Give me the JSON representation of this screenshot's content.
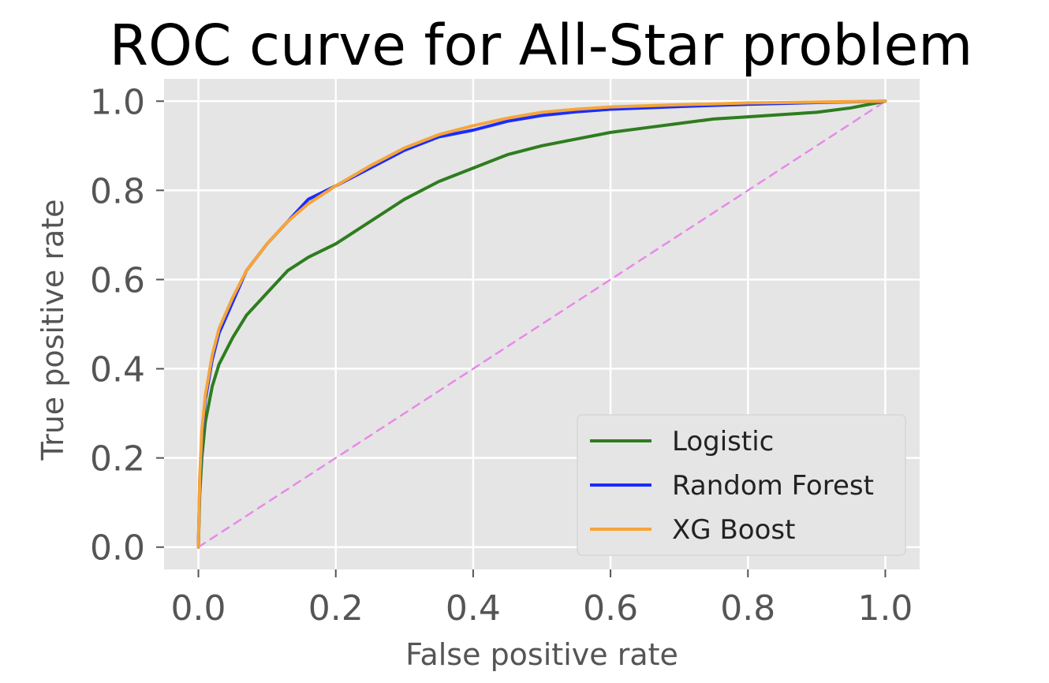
{
  "chart_data": {
    "type": "line",
    "title": "ROC curve for All-Star problem",
    "xlabel": "False positive rate",
    "ylabel": "True positive rate",
    "xlim": [
      -0.05,
      1.05
    ],
    "ylim": [
      -0.05,
      1.05
    ],
    "xticks": [
      "0.0",
      "0.2",
      "0.4",
      "0.6",
      "0.8",
      "1.0"
    ],
    "yticks": [
      "0.0",
      "0.2",
      "0.4",
      "0.6",
      "0.8",
      "1.0"
    ],
    "grid": true,
    "legend_position": "lower right",
    "colors": {
      "background": "#e5e5e5",
      "grid": "#ffffff"
    },
    "series": [
      {
        "name": "Logistic",
        "color": "#2e7d1f",
        "x": [
          0,
          0.002,
          0.005,
          0.01,
          0.02,
          0.03,
          0.05,
          0.07,
          0.1,
          0.13,
          0.16,
          0.2,
          0.25,
          0.3,
          0.35,
          0.4,
          0.45,
          0.5,
          0.55,
          0.6,
          0.65,
          0.7,
          0.75,
          0.8,
          0.85,
          0.9,
          0.95,
          1.0
        ],
        "y": [
          0,
          0.12,
          0.2,
          0.28,
          0.36,
          0.41,
          0.47,
          0.52,
          0.57,
          0.62,
          0.65,
          0.68,
          0.73,
          0.78,
          0.82,
          0.85,
          0.88,
          0.9,
          0.915,
          0.93,
          0.94,
          0.95,
          0.96,
          0.965,
          0.97,
          0.975,
          0.985,
          1.0
        ]
      },
      {
        "name": "Random Forest",
        "color": "#1a2cff",
        "x": [
          0,
          0.002,
          0.005,
          0.01,
          0.02,
          0.03,
          0.05,
          0.07,
          0.1,
          0.13,
          0.16,
          0.2,
          0.25,
          0.3,
          0.35,
          0.4,
          0.45,
          0.5,
          0.55,
          0.6,
          0.7,
          0.8,
          0.9,
          1.0
        ],
        "y": [
          0,
          0.15,
          0.25,
          0.33,
          0.42,
          0.48,
          0.55,
          0.62,
          0.68,
          0.73,
          0.78,
          0.81,
          0.85,
          0.89,
          0.92,
          0.935,
          0.955,
          0.968,
          0.976,
          0.982,
          0.988,
          0.993,
          0.997,
          1.0
        ]
      },
      {
        "name": "XG Boost",
        "color": "#f5a53a",
        "x": [
          0,
          0.002,
          0.005,
          0.01,
          0.02,
          0.03,
          0.05,
          0.07,
          0.1,
          0.13,
          0.16,
          0.2,
          0.25,
          0.3,
          0.35,
          0.4,
          0.45,
          0.5,
          0.55,
          0.6,
          0.7,
          0.8,
          0.9,
          1.0
        ],
        "y": [
          0,
          0.16,
          0.26,
          0.34,
          0.43,
          0.49,
          0.56,
          0.62,
          0.68,
          0.73,
          0.77,
          0.81,
          0.855,
          0.895,
          0.925,
          0.945,
          0.962,
          0.975,
          0.982,
          0.987,
          0.992,
          0.996,
          0.998,
          1.0
        ]
      },
      {
        "name": "",
        "color": "#e88ae8",
        "dashed": true,
        "x": [
          0,
          1
        ],
        "y": [
          0,
          1
        ]
      }
    ]
  }
}
